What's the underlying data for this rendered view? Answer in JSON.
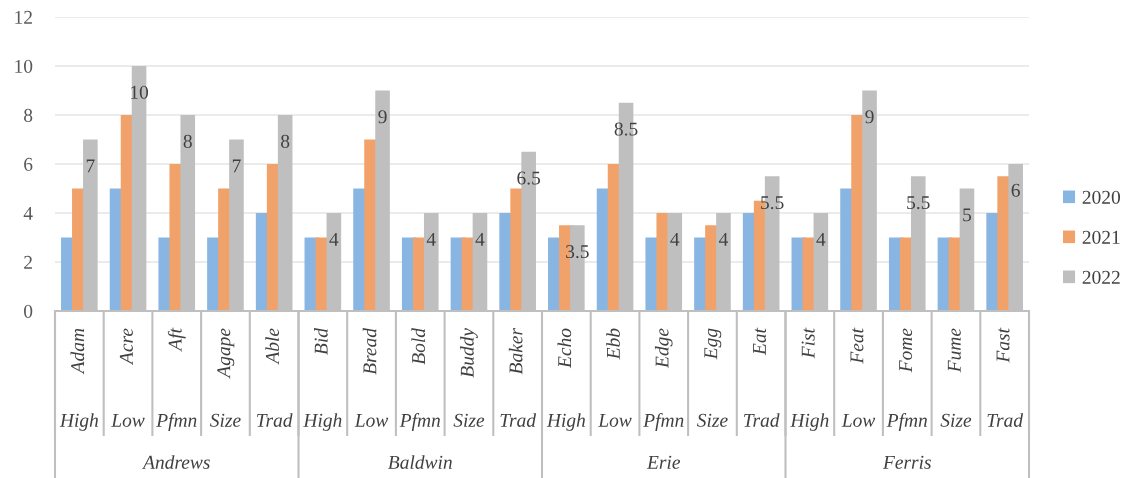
{
  "chart_data": {
    "type": "bar",
    "categories": [
      "Adam",
      "Acre",
      "Aft",
      "Agape",
      "Able",
      "Bid",
      "Bread",
      "Bold",
      "Buddy",
      "Baker",
      "Echo",
      "Ebb",
      "Edge",
      "Egg",
      "Eat",
      "Fist",
      "Feat",
      "Fome",
      "Fume",
      "Fast"
    ],
    "series": [
      {
        "name": "2020",
        "color": "#89b5e2",
        "values": [
          3,
          5,
          3,
          3,
          4,
          3,
          5,
          3,
          3,
          4,
          3,
          5,
          3,
          3,
          4,
          3,
          5,
          3,
          3,
          4
        ]
      },
      {
        "name": "2021",
        "color": "#f1a26b",
        "values": [
          5,
          8,
          6,
          5,
          6,
          3,
          7,
          3,
          3,
          5,
          3.5,
          6,
          4,
          3.5,
          4.5,
          3,
          8,
          3,
          3,
          5.5
        ]
      },
      {
        "name": "2022",
        "color": "#bfbfbf",
        "values": [
          7,
          10,
          8,
          7,
          8,
          4,
          9,
          4,
          4,
          6.5,
          3.5,
          8.5,
          4,
          4,
          5.5,
          4,
          9,
          5.5,
          5,
          6
        ],
        "value_labels": [
          "7",
          "10",
          "8",
          "7",
          "8",
          "4",
          "9",
          "4",
          "4",
          "6.5",
          "3.5",
          "8.5",
          "4",
          "4",
          "5.5",
          "4",
          "9",
          "5.5",
          "5",
          "6"
        ]
      }
    ],
    "ylim": [
      0,
      12
    ],
    "yticks": [
      0,
      2,
      4,
      6,
      8,
      10,
      12
    ],
    "grid": "y",
    "legend": "right",
    "annotations": [
      "High",
      "Low",
      "Pfmn",
      "Size",
      "Trad",
      "High",
      "Low",
      "Pfmn",
      "Size",
      "Trad",
      "High",
      "Low",
      "Pfmn",
      "Size",
      "Trad",
      "High",
      "Low",
      "Pfmn",
      "Size",
      "Trad",
      "Andrews",
      "Baldwin",
      "Erie",
      "Ferris"
    ]
  }
}
